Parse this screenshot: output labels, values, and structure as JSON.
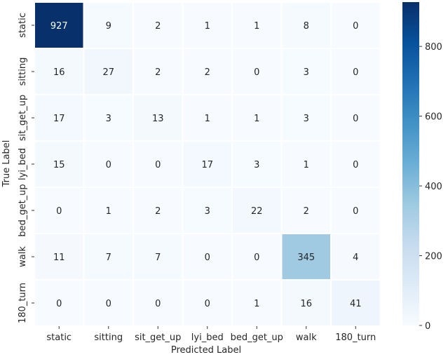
{
  "chart_data": {
    "type": "heatmap",
    "title": "",
    "xlabel": "Predicted Label",
    "ylabel": "True Label",
    "x_categories": [
      "static",
      "sitting",
      "sit_get_up",
      "lyi_bed",
      "bed_get_up",
      "walk",
      "180_turn"
    ],
    "y_categories": [
      "static",
      "sitting",
      "sit_get_up",
      "lyi_bed",
      "bed_get_up",
      "walk",
      "180_turn"
    ],
    "values": [
      [
        927,
        9,
        2,
        1,
        1,
        8,
        0
      ],
      [
        16,
        27,
        2,
        2,
        0,
        3,
        0
      ],
      [
        17,
        3,
        13,
        1,
        1,
        3,
        0
      ],
      [
        15,
        0,
        0,
        17,
        3,
        1,
        0
      ],
      [
        0,
        1,
        2,
        3,
        22,
        2,
        0
      ],
      [
        11,
        7,
        7,
        0,
        0,
        345,
        4
      ],
      [
        0,
        0,
        0,
        0,
        1,
        16,
        41
      ]
    ],
    "colorbar": {
      "min": 0,
      "max": 927,
      "ticks": [
        0,
        200,
        400,
        600,
        800
      ],
      "tick_labels": [
        "0",
        "200",
        "400",
        "600",
        "800"
      ]
    },
    "colormap": "Blues",
    "grid": false
  }
}
